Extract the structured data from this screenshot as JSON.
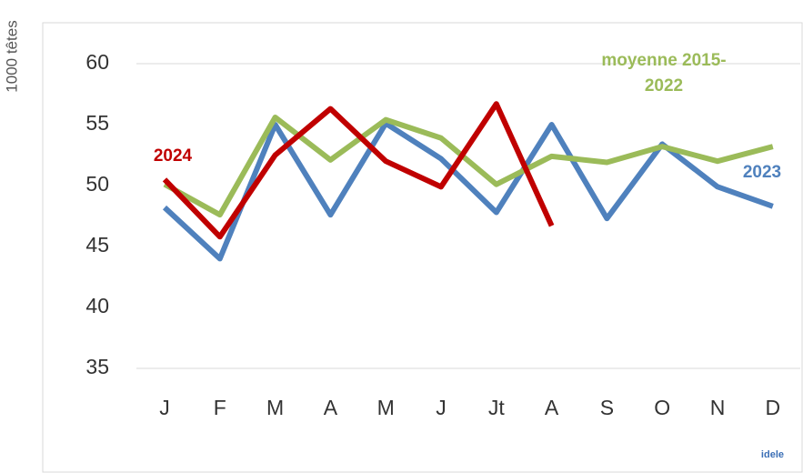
{
  "chart_data": {
    "type": "line",
    "y_label": "1000 têtes",
    "categories": [
      "J",
      "F",
      "M",
      "A",
      "M",
      "J",
      "Jt",
      "A",
      "S",
      "O",
      "N",
      "D"
    ],
    "series": [
      {
        "name": "2023",
        "color": "#4f81bd",
        "values": [
          48.2,
          44.0,
          55.0,
          47.6,
          55.1,
          52.2,
          47.8,
          55.0,
          47.3,
          53.4,
          49.9,
          48.3
        ]
      },
      {
        "name": "moyenne 2015-2022",
        "color": "#9bbb59",
        "values": [
          50.1,
          47.6,
          55.6,
          52.1,
          55.4,
          53.9,
          50.1,
          52.4,
          51.9,
          53.2,
          52.0,
          53.2
        ]
      },
      {
        "name": "2024",
        "color": "#c00000",
        "values": [
          50.5,
          45.8,
          52.5,
          56.3,
          52.0,
          49.9,
          56.7,
          46.7,
          null,
          null,
          null,
          null
        ]
      }
    ],
    "ylim": [
      35,
      60
    ],
    "yticks": [
      35,
      40,
      45,
      50,
      55,
      60
    ],
    "logo": "idele"
  }
}
